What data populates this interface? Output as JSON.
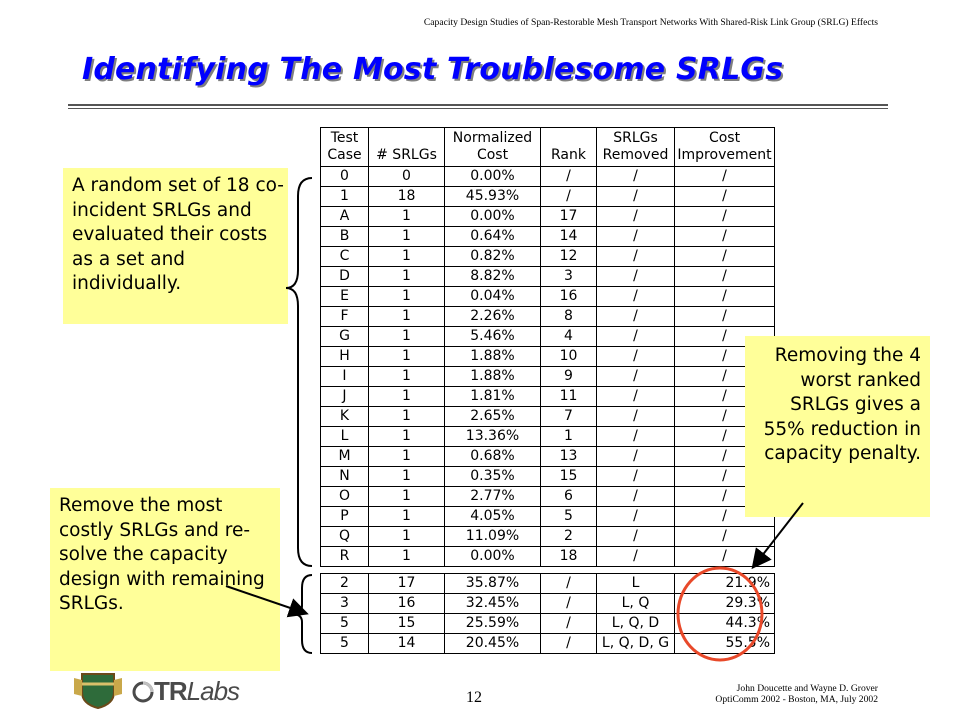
{
  "header_note": "Capacity Design Studies of Span-Restorable Mesh Transport Networks With Shared-Risk Link Group (SRLG) Effects",
  "title": "Identifying The Most Troublesome SRLGs",
  "table": {
    "headers": [
      [
        "Test",
        "Case"
      ],
      [
        "",
        "# SRLGs"
      ],
      [
        "Normalized",
        "Cost"
      ],
      [
        "",
        "Rank"
      ],
      [
        "SRLGs",
        "Removed"
      ],
      [
        "Cost",
        "Improvement"
      ]
    ],
    "rows": [
      [
        "0",
        "0",
        "0.00%",
        "/",
        "/",
        "/"
      ],
      [
        "1",
        "18",
        "45.93%",
        "/",
        "/",
        "/"
      ],
      [
        "A",
        "1",
        "0.00%",
        "17",
        "/",
        "/"
      ],
      [
        "B",
        "1",
        "0.64%",
        "14",
        "/",
        "/"
      ],
      [
        "C",
        "1",
        "0.82%",
        "12",
        "/",
        "/"
      ],
      [
        "D",
        "1",
        "8.82%",
        "3",
        "/",
        "/"
      ],
      [
        "E",
        "1",
        "0.04%",
        "16",
        "/",
        "/"
      ],
      [
        "F",
        "1",
        "2.26%",
        "8",
        "/",
        "/"
      ],
      [
        "G",
        "1",
        "5.46%",
        "4",
        "/",
        "/"
      ],
      [
        "H",
        "1",
        "1.88%",
        "10",
        "/",
        "/"
      ],
      [
        "I",
        "1",
        "1.88%",
        "9",
        "/",
        "/"
      ],
      [
        "J",
        "1",
        "1.81%",
        "11",
        "/",
        "/"
      ],
      [
        "K",
        "1",
        "2.65%",
        "7",
        "/",
        "/"
      ],
      [
        "L",
        "1",
        "13.36%",
        "1",
        "/",
        "/"
      ],
      [
        "M",
        "1",
        "0.68%",
        "13",
        "/",
        "/"
      ],
      [
        "N",
        "1",
        "0.35%",
        "15",
        "/",
        "/"
      ],
      [
        "O",
        "1",
        "2.77%",
        "6",
        "/",
        "/"
      ],
      [
        "P",
        "1",
        "4.05%",
        "5",
        "/",
        "/"
      ],
      [
        "Q",
        "1",
        "11.09%",
        "2",
        "/",
        "/"
      ],
      [
        "R",
        "1",
        "0.00%",
        "18",
        "/",
        "/"
      ]
    ],
    "resolve_rows": [
      [
        "2",
        "17",
        "35.87%",
        "/",
        "L",
        "21.9%"
      ],
      [
        "3",
        "16",
        "32.45%",
        "/",
        "L, Q",
        "29.3%"
      ],
      [
        "5",
        "15",
        "25.59%",
        "/",
        "L, Q, D",
        "44.3%"
      ],
      [
        "5",
        "14",
        "20.45%",
        "/",
        "L, Q, D, G",
        "55.5%"
      ]
    ]
  },
  "callouts": {
    "random_set": "A random set of 18 co-incident SRLGs and evaluated their costs as a set and individually.",
    "remove_most": "Remove the most costly SRLGs and re-solve the capacity design with remaining SRLGs.",
    "removing_worst": "Removing the 4 worst ranked SRLGs gives a 55% reduction in capacity penalty."
  },
  "logo": {
    "trlabs_tr": "TR",
    "trlabs_labs": "Labs"
  },
  "page_number": "12",
  "footer": {
    "line1": "John Doucette and Wayne D. Grover",
    "line2": "OptiComm 2002 - Boston, MA, July 2002"
  },
  "colors": {
    "title": "#0000ff",
    "callout_bg": "#ffff99",
    "highlight_ellipse": "#e8492a"
  }
}
